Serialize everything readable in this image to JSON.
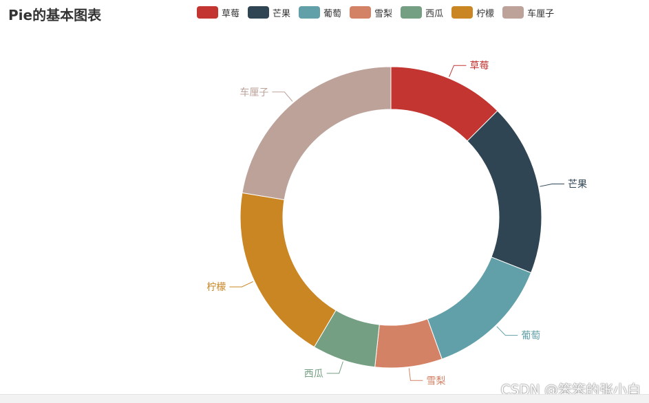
{
  "chart_data": {
    "type": "pie",
    "title": "Pie的基本图表",
    "donut": true,
    "legend_position": "top",
    "series": [
      {
        "name": "",
        "data": [
          {
            "name": "草莓",
            "value": 12.5,
            "color": "#c23531"
          },
          {
            "name": "芒果",
            "value": 18.5,
            "color": "#2f4554"
          },
          {
            "name": "葡萄",
            "value": 13.5,
            "color": "#61a0a8"
          },
          {
            "name": "雪梨",
            "value": 7.2,
            "color": "#d48265"
          },
          {
            "name": "西瓜",
            "value": 6.8,
            "color": "#749f83"
          },
          {
            "name": "柠檬",
            "value": 19.1,
            "color": "#ca8622"
          },
          {
            "name": "车厘子",
            "value": 22.4,
            "color": "#bda29a"
          }
        ]
      }
    ]
  },
  "watermark": "CSDN @笨笨的张小白"
}
